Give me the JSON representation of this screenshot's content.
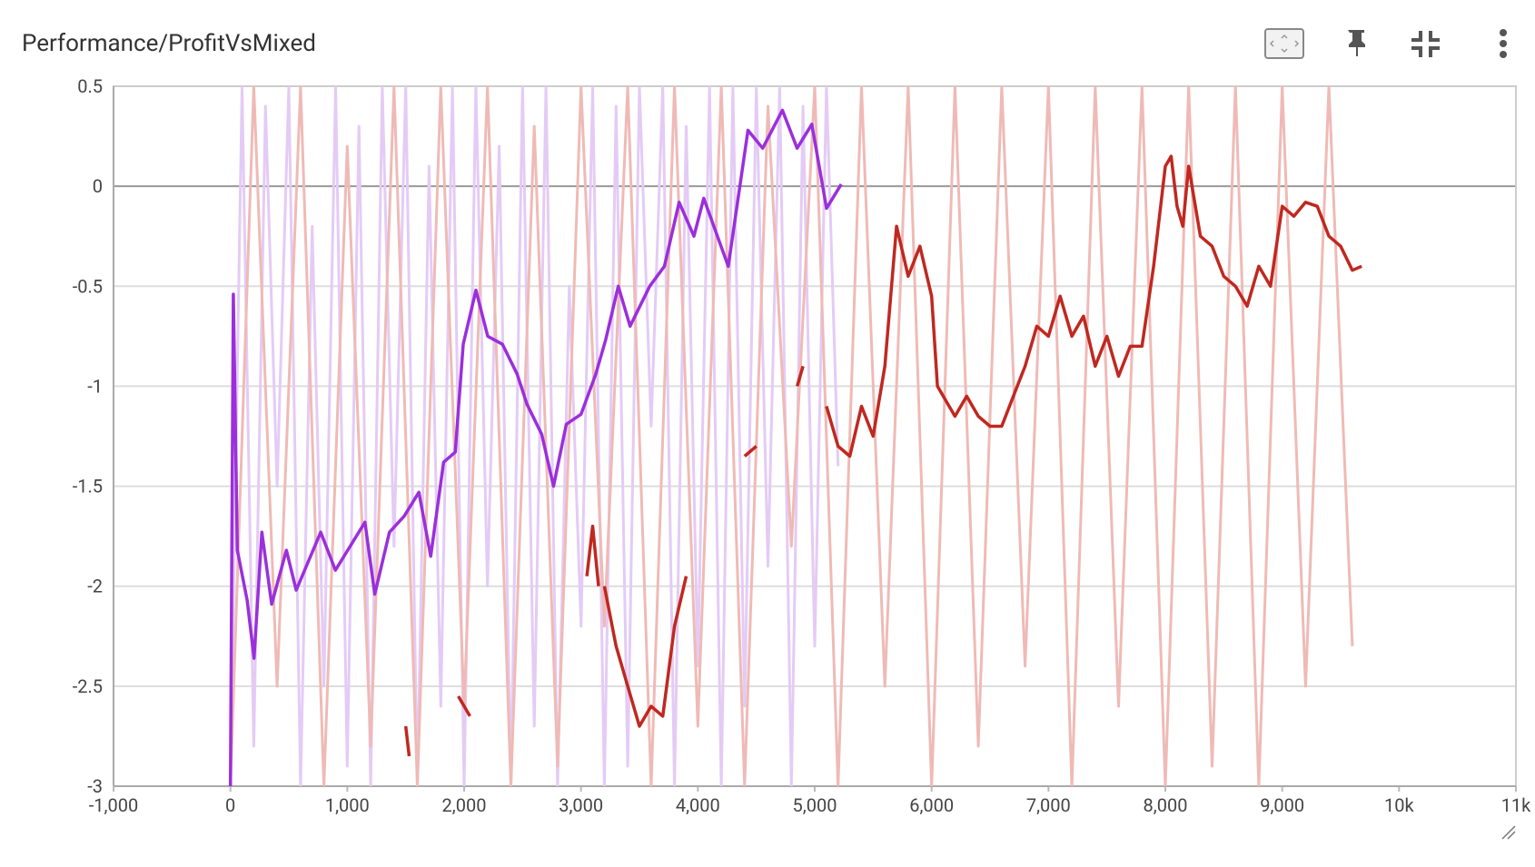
{
  "chart_data": {
    "type": "line",
    "title": "Performance/ProfitVsMixed",
    "xlim": [
      -1000,
      11000
    ],
    "ylim": [
      -3,
      0.5
    ],
    "xticks": [
      {
        "value": -1000,
        "label": "-1,000"
      },
      0,
      {
        "value": 1000,
        "label": "1,000"
      },
      {
        "value": 2000,
        "label": "2,000"
      },
      {
        "value": 3000,
        "label": "3,000"
      },
      {
        "value": 4000,
        "label": "4,000"
      },
      {
        "value": 5000,
        "label": "5,000"
      },
      {
        "value": 6000,
        "label": "6,000"
      },
      {
        "value": 7000,
        "label": "7,000"
      },
      {
        "value": 8000,
        "label": "8,000"
      },
      {
        "value": 9000,
        "label": "9,000"
      },
      {
        "value": 10000,
        "label": "10k"
      },
      {
        "value": 11000,
        "label": "11k"
      }
    ],
    "yticks": [
      -3,
      -2.5,
      -2,
      -1.5,
      -1,
      -0.5,
      0,
      0.5
    ],
    "grid": true,
    "series": [
      {
        "color": "#e4cbf5",
        "width": 3,
        "x": [
          0,
          100,
          200,
          300,
          400,
          500,
          600,
          700,
          800,
          900,
          1000,
          1100,
          1200,
          1300,
          1400,
          1500,
          1600,
          1700,
          1800,
          1900,
          2000,
          2100,
          2200,
          2300,
          2400,
          2500,
          2600,
          2700,
          2800,
          2900,
          3000,
          3100,
          3200,
          3300,
          3400,
          3500,
          3600,
          3700,
          3800,
          3900,
          4000,
          4100,
          4200,
          4300,
          4400,
          4500,
          4600,
          4700,
          4800,
          4900,
          5000,
          5100,
          5200
        ],
        "values": [
          -3,
          0.5,
          -2.8,
          0.4,
          -1.5,
          0.5,
          -3,
          -0.2,
          -2.5,
          0.5,
          -2.9,
          0.3,
          -3,
          0.5,
          -1.8,
          0.5,
          -3,
          0.1,
          -2.6,
          0.5,
          -3,
          0.5,
          -2,
          0.2,
          -3,
          0.5,
          -2.7,
          0.5,
          -3,
          -0.5,
          -2.2,
          0.5,
          -3,
          0.4,
          -2.9,
          0.5,
          -1.2,
          0.5,
          -3,
          0.3,
          -2.4,
          0.5,
          -3,
          0.5,
          -2.6,
          0.5,
          -1.9,
          0.5,
          -3,
          0.4,
          -2.3,
          0.5,
          -1.4
        ]
      },
      {
        "color": "#efbab6",
        "width": 3,
        "x": [
          0,
          200,
          400,
          600,
          800,
          1000,
          1200,
          1400,
          1600,
          1800,
          2000,
          2200,
          2400,
          2600,
          2800,
          3000,
          3200,
          3400,
          3600,
          3800,
          4000,
          4200,
          4400,
          4600,
          4800,
          5000,
          5200,
          5400,
          5600,
          5800,
          6000,
          6200,
          6400,
          6600,
          6800,
          7000,
          7200,
          7400,
          7600,
          7800,
          8000,
          8200,
          8400,
          8600,
          8800,
          9000,
          9200,
          9400,
          9600
        ],
        "values": [
          -3,
          0.5,
          -2.5,
          0.5,
          -3,
          0.2,
          -2.8,
          0.5,
          -3,
          0.5,
          -2.6,
          0.5,
          -3,
          0.3,
          -2.9,
          0.5,
          -2.2,
          0.5,
          -3,
          0.5,
          -2.7,
          0.5,
          -3,
          0.4,
          -1.8,
          0.5,
          -3,
          0.5,
          -2.5,
          0.5,
          -3,
          0.5,
          -2.8,
          0.5,
          -2.4,
          0.5,
          -3,
          0.5,
          -2.6,
          0.5,
          -3,
          0.5,
          -2.9,
          0.5,
          -3,
          0.5,
          -2.5,
          0.5,
          -2.3
        ]
      },
      {
        "color": "#9b2fdc",
        "width": 3.5,
        "x": [
          0,
          25,
          59,
          143,
          202,
          269,
          353,
          479,
          563,
          773,
          899,
          1151,
          1235,
          1361,
          1487,
          1613,
          1714,
          1824,
          1924,
          1992,
          2101,
          2202,
          2328,
          2454,
          2538,
          2664,
          2765,
          2874,
          3000,
          3126,
          3210,
          3319,
          3420,
          3588,
          3714,
          3840,
          3966,
          4050,
          4260,
          4429,
          4555,
          4723,
          4849,
          4975,
          5101,
          5227
        ],
        "values": [
          -3,
          -0.54,
          -1.82,
          -2.07,
          -2.36,
          -1.73,
          -2.09,
          -1.82,
          -2.02,
          -1.73,
          -1.92,
          -1.68,
          -2.04,
          -1.73,
          -1.65,
          -1.53,
          -1.85,
          -1.38,
          -1.33,
          -0.79,
          -0.52,
          -0.75,
          -0.79,
          -0.94,
          -1.09,
          -1.24,
          -1.5,
          -1.19,
          -1.14,
          -0.94,
          -0.77,
          -0.5,
          -0.7,
          -0.5,
          -0.4,
          -0.08,
          -0.25,
          -0.06,
          -0.4,
          0.28,
          0.19,
          0.38,
          0.19,
          0.31,
          -0.11,
          0.01
        ]
      },
      {
        "color": "#c0281f",
        "width": 3.5,
        "x": [
          1500,
          1530,
          1700,
          1950,
          2000,
          2050,
          2500,
          3050,
          3100,
          3150,
          3170,
          3200,
          3300,
          3400,
          3500,
          3600,
          3700,
          3800,
          3900,
          4100,
          4400,
          4500,
          4700,
          4850,
          4900,
          5000,
          5100,
          5200,
          5300,
          5400,
          5500,
          5600,
          5700,
          5800,
          5900,
          6000,
          6050,
          6100,
          6200,
          6300,
          6400,
          6500,
          6600,
          6700,
          6800,
          6900,
          7000,
          7100,
          7200,
          7300,
          7400,
          7500,
          7600,
          7700,
          7800,
          7900,
          8000,
          8050,
          8100,
          8150,
          8200,
          8300,
          8400,
          8500,
          8600,
          8700,
          8800,
          8900,
          9000,
          9100,
          9200,
          9300,
          9400,
          9500,
          9600,
          9680
        ],
        "values": [
          -2.7,
          -2.85,
          null,
          -2.55,
          -2.6,
          -2.65,
          null,
          -1.95,
          -1.7,
          -2.0,
          null,
          -2.0,
          -2.3,
          -2.5,
          -2.7,
          -2.6,
          -2.65,
          -2.2,
          -1.95,
          null,
          -1.35,
          -1.3,
          null,
          -1.0,
          -0.9,
          null,
          -1.1,
          -1.3,
          -1.35,
          -1.1,
          -1.25,
          -0.9,
          -0.2,
          -0.45,
          -0.3,
          -0.55,
          -1.0,
          -1.05,
          -1.15,
          -1.05,
          -1.15,
          -1.2,
          -1.2,
          -1.05,
          -0.9,
          -0.7,
          -0.75,
          -0.55,
          -0.75,
          -0.65,
          -0.9,
          -0.75,
          -0.95,
          -0.8,
          -0.8,
          -0.4,
          0.1,
          0.15,
          -0.1,
          -0.2,
          0.1,
          -0.25,
          -0.3,
          -0.45,
          -0.5,
          -0.6,
          -0.4,
          -0.5,
          -0.1,
          -0.15,
          -0.08,
          -0.1,
          -0.25,
          -0.3,
          -0.42,
          -0.4
        ]
      }
    ]
  }
}
